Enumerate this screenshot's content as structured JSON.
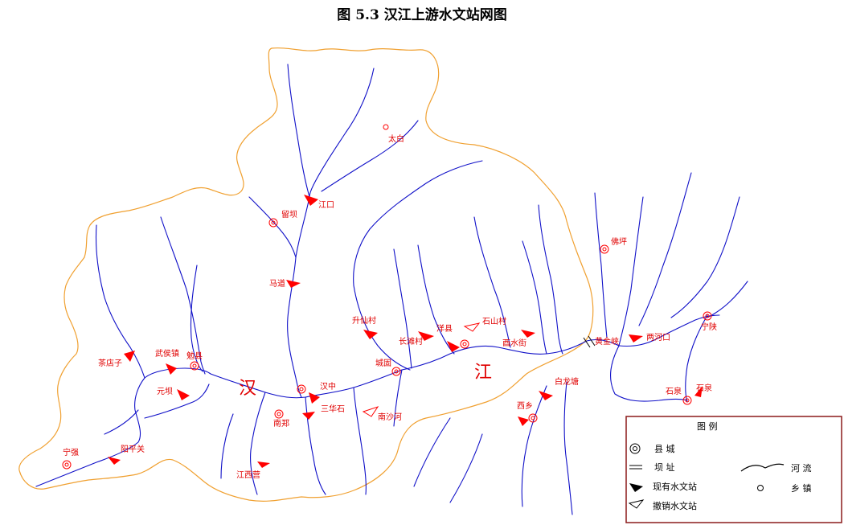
{
  "title": "图 5.3    汉江上游水文站网图",
  "colors": {
    "river": "#1010c8",
    "boundary": "#f0a030",
    "station": "#ff0000",
    "label": "#e00000",
    "legend_border": "#8b1a1a"
  },
  "legend": {
    "title": "图    例",
    "items": {
      "county": "县     城",
      "dam": "坝     址",
      "existing_station": "现有水文站",
      "cancelled_station": "撤销水文站",
      "river": "河     流",
      "town": "乡     镇"
    }
  },
  "stations": {
    "jiangkou": "江口",
    "madao": "马道",
    "shengxiancun": "升仙村",
    "changxingcun": "长滩村",
    "yangxian": "洋县",
    "shishancun": "石山村",
    "xishuijie": "酉水街",
    "lianghekou": "两河口",
    "chadianzi": "茶店子",
    "wuhouzhen": "武侯镇",
    "yuanba": "元坝",
    "hanzhong": "汉中",
    "sanhuashi": "三华石",
    "jiangxiying": "江西营",
    "ningqiang": "宁强",
    "yangpingguan": "阳平关",
    "baihechang": "白龙塘",
    "xixiang": "西乡",
    "shiquan": "石泉",
    "huangjinxia": "黄金峡",
    "nanshahe": "南沙河"
  },
  "places": {
    "liuba": "留坝",
    "taibai": "太白",
    "foping": "佛坪",
    "ningshan": "宁陕",
    "mianxian": "勉县",
    "nanzheng": "南郑",
    "chenggu": "城固",
    "shiquan_county": "石泉"
  },
  "river_labels": {
    "han_1": "汉",
    "jiang_1": "江"
  }
}
